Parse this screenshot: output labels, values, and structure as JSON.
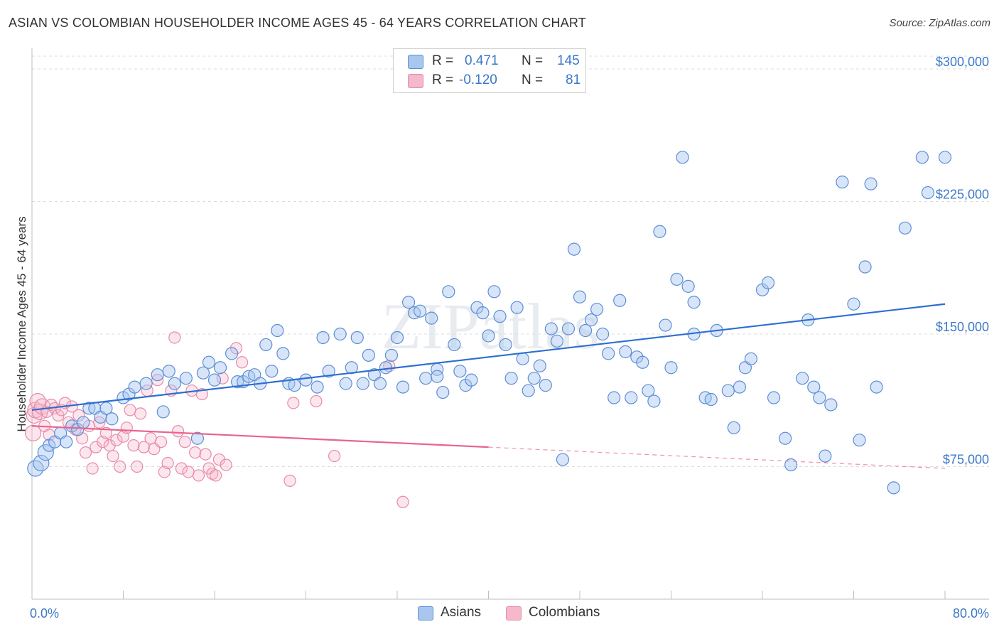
{
  "title": "ASIAN VS COLOMBIAN HOUSEHOLDER INCOME AGES 45 - 64 YEARS CORRELATION CHART",
  "source": "Source: ZipAtlas.com",
  "watermark": "ZIPatlas",
  "colors": {
    "asians_fill": "#a9c6ef",
    "asians_stroke": "#5b8fd6",
    "asians_line": "#2c6fd0",
    "colombians_fill": "#f6b8cb",
    "colombians_stroke": "#e88aa8",
    "colombians_line": "#e8648e",
    "axis_text": "#3a78c8",
    "grid": "#dddddd"
  },
  "legend": {
    "r_label": "R =",
    "n_label": "N =",
    "rows": [
      {
        "r": "0.471",
        "n": "145"
      },
      {
        "r": "-0.120",
        "n": "81"
      }
    ]
  },
  "bottom_legend": [
    "Asians",
    "Colombians"
  ],
  "chart_data": {
    "type": "scatter",
    "ylabel": "Householder Income Ages 45 - 64 years",
    "xlabel": "",
    "x_tick_labels": [
      "0.0%",
      "80.0%"
    ],
    "y_tick_labels": [
      "$75,000",
      "$150,000",
      "$225,000",
      "$300,000"
    ],
    "y_ticks": [
      75000,
      150000,
      225000,
      300000
    ],
    "xlim": [
      0,
      80
    ],
    "ylim": [
      0,
      310000
    ],
    "grid": true,
    "legend_position": "top-center",
    "series": [
      {
        "name": "Asians",
        "trend": {
          "x": [
            0,
            80
          ],
          "y": [
            107000,
            167000
          ]
        },
        "points": [
          [
            0.3,
            74000
          ],
          [
            0.8,
            77000
          ],
          [
            1.2,
            83000
          ],
          [
            1.5,
            87000
          ],
          [
            2.0,
            89000
          ],
          [
            2.5,
            94000
          ],
          [
            3.0,
            89000
          ],
          [
            3.5,
            98000
          ],
          [
            4.0,
            96000
          ],
          [
            4.5,
            100000
          ],
          [
            5.0,
            108000
          ],
          [
            5.5,
            108000
          ],
          [
            6.0,
            103000
          ],
          [
            6.5,
            108000
          ],
          [
            7.0,
            102000
          ],
          [
            8.0,
            114000
          ],
          [
            8.5,
            116000
          ],
          [
            9.0,
            120000
          ],
          [
            10.0,
            122000
          ],
          [
            11.0,
            127000
          ],
          [
            11.5,
            106000
          ],
          [
            12.0,
            129000
          ],
          [
            12.5,
            122000
          ],
          [
            13.5,
            125000
          ],
          [
            14.5,
            91000
          ],
          [
            15.0,
            128000
          ],
          [
            15.5,
            134000
          ],
          [
            16.0,
            124000
          ],
          [
            16.5,
            131000
          ],
          [
            17.5,
            139000
          ],
          [
            18.0,
            123000
          ],
          [
            18.5,
            123000
          ],
          [
            19.0,
            126000
          ],
          [
            19.5,
            127000
          ],
          [
            20.0,
            122000
          ],
          [
            20.5,
            144000
          ],
          [
            21.0,
            129000
          ],
          [
            21.5,
            152000
          ],
          [
            22.0,
            139000
          ],
          [
            22.5,
            122000
          ],
          [
            23.0,
            121000
          ],
          [
            24.0,
            124000
          ],
          [
            25.0,
            120000
          ],
          [
            25.5,
            148000
          ],
          [
            26.0,
            129000
          ],
          [
            27.0,
            150000
          ],
          [
            27.5,
            122000
          ],
          [
            28.0,
            131000
          ],
          [
            28.5,
            148000
          ],
          [
            29.0,
            122000
          ],
          [
            29.5,
            138000
          ],
          [
            30.0,
            127000
          ],
          [
            30.5,
            122000
          ],
          [
            31.0,
            131000
          ],
          [
            31.5,
            138000
          ],
          [
            32.0,
            148000
          ],
          [
            32.5,
            120000
          ],
          [
            33.0,
            168000
          ],
          [
            33.5,
            162000
          ],
          [
            34.0,
            163000
          ],
          [
            34.5,
            125000
          ],
          [
            35.0,
            159000
          ],
          [
            35.5,
            130000
          ],
          [
            35.5,
            126000
          ],
          [
            36.0,
            117000
          ],
          [
            36.5,
            174000
          ],
          [
            37.0,
            144000
          ],
          [
            37.5,
            129000
          ],
          [
            38.0,
            121000
          ],
          [
            38.5,
            124000
          ],
          [
            39.0,
            165000
          ],
          [
            39.5,
            162000
          ],
          [
            40.0,
            149000
          ],
          [
            40.5,
            174000
          ],
          [
            41.0,
            160000
          ],
          [
            41.5,
            144000
          ],
          [
            42.0,
            125000
          ],
          [
            42.5,
            165000
          ],
          [
            43.0,
            136000
          ],
          [
            43.5,
            118000
          ],
          [
            44.0,
            125000
          ],
          [
            44.5,
            132000
          ],
          [
            45.0,
            121000
          ],
          [
            45.5,
            153000
          ],
          [
            46.0,
            146000
          ],
          [
            46.5,
            79000
          ],
          [
            47.0,
            153000
          ],
          [
            47.5,
            198000
          ],
          [
            48.0,
            171000
          ],
          [
            48.5,
            152000
          ],
          [
            49.0,
            158000
          ],
          [
            49.5,
            164000
          ],
          [
            50.0,
            150000
          ],
          [
            50.5,
            139000
          ],
          [
            51.0,
            114000
          ],
          [
            51.5,
            169000
          ],
          [
            52.0,
            140000
          ],
          [
            52.5,
            114000
          ],
          [
            53.0,
            137000
          ],
          [
            53.5,
            134000
          ],
          [
            54.0,
            118000
          ],
          [
            54.5,
            112000
          ],
          [
            55.0,
            208000
          ],
          [
            55.5,
            155000
          ],
          [
            56.0,
            131000
          ],
          [
            56.5,
            181000
          ],
          [
            57.0,
            250000
          ],
          [
            57.5,
            177000
          ],
          [
            58.0,
            168000
          ],
          [
            58.0,
            150000
          ],
          [
            59.0,
            114000
          ],
          [
            59.5,
            113000
          ],
          [
            60.0,
            152000
          ],
          [
            61.0,
            118000
          ],
          [
            61.5,
            97000
          ],
          [
            62.0,
            120000
          ],
          [
            62.5,
            131000
          ],
          [
            63.0,
            136000
          ],
          [
            64.0,
            175000
          ],
          [
            64.5,
            179000
          ],
          [
            65.0,
            114000
          ],
          [
            66.0,
            91000
          ],
          [
            66.5,
            76000
          ],
          [
            67.5,
            125000
          ],
          [
            68.0,
            158000
          ],
          [
            68.5,
            120000
          ],
          [
            69.0,
            114000
          ],
          [
            69.5,
            81000
          ],
          [
            70.0,
            110000
          ],
          [
            71.0,
            236000
          ],
          [
            72.0,
            167000
          ],
          [
            72.5,
            90000
          ],
          [
            73.0,
            188000
          ],
          [
            73.5,
            235000
          ],
          [
            74.0,
            120000
          ],
          [
            75.5,
            63000
          ],
          [
            76.5,
            210000
          ],
          [
            78.0,
            250000
          ],
          [
            78.5,
            230000
          ],
          [
            80.0,
            250000
          ]
        ]
      },
      {
        "name": "Colombians",
        "trend": {
          "x": [
            0,
            40,
            80
          ],
          "y": [
            98000,
            86000,
            74000
          ]
        },
        "points": [
          [
            0.1,
            94000
          ],
          [
            0.2,
            104000
          ],
          [
            0.3,
            107000
          ],
          [
            0.5,
            112000
          ],
          [
            0.7,
            106000
          ],
          [
            0.9,
            109000
          ],
          [
            1.1,
            98000
          ],
          [
            1.3,
            106000
          ],
          [
            1.5,
            93000
          ],
          [
            1.7,
            110000
          ],
          [
            2.0,
            108000
          ],
          [
            2.3,
            104000
          ],
          [
            2.6,
            107000
          ],
          [
            2.9,
            111000
          ],
          [
            3.2,
            100000
          ],
          [
            3.5,
            109000
          ],
          [
            3.8,
            96000
          ],
          [
            4.1,
            104000
          ],
          [
            4.4,
            91000
          ],
          [
            4.7,
            83000
          ],
          [
            5.0,
            98000
          ],
          [
            5.3,
            74000
          ],
          [
            5.6,
            86000
          ],
          [
            5.9,
            100000
          ],
          [
            6.2,
            89000
          ],
          [
            6.5,
            94000
          ],
          [
            6.8,
            87000
          ],
          [
            7.1,
            81000
          ],
          [
            7.4,
            90000
          ],
          [
            7.7,
            75000
          ],
          [
            8.0,
            92000
          ],
          [
            8.3,
            97000
          ],
          [
            8.6,
            107000
          ],
          [
            8.9,
            87000
          ],
          [
            9.2,
            75000
          ],
          [
            9.5,
            105000
          ],
          [
            9.8,
            86000
          ],
          [
            10.1,
            118000
          ],
          [
            10.4,
            91000
          ],
          [
            10.7,
            85000
          ],
          [
            11.0,
            124000
          ],
          [
            11.3,
            89000
          ],
          [
            11.6,
            72000
          ],
          [
            11.9,
            77000
          ],
          [
            12.2,
            118000
          ],
          [
            12.5,
            148000
          ],
          [
            12.8,
            95000
          ],
          [
            13.1,
            74000
          ],
          [
            13.4,
            89000
          ],
          [
            13.7,
            72000
          ],
          [
            14.0,
            118000
          ],
          [
            14.3,
            83000
          ],
          [
            14.6,
            70000
          ],
          [
            14.9,
            116000
          ],
          [
            15.2,
            82000
          ],
          [
            15.5,
            74000
          ],
          [
            15.8,
            71000
          ],
          [
            16.1,
            70000
          ],
          [
            16.4,
            79000
          ],
          [
            16.7,
            125000
          ],
          [
            17.0,
            76000
          ],
          [
            17.9,
            142000
          ],
          [
            18.4,
            134000
          ],
          [
            22.6,
            67000
          ],
          [
            22.9,
            111000
          ],
          [
            24.9,
            112000
          ],
          [
            26.5,
            81000
          ],
          [
            31.3,
            132000
          ],
          [
            32.5,
            55000
          ]
        ]
      }
    ]
  }
}
